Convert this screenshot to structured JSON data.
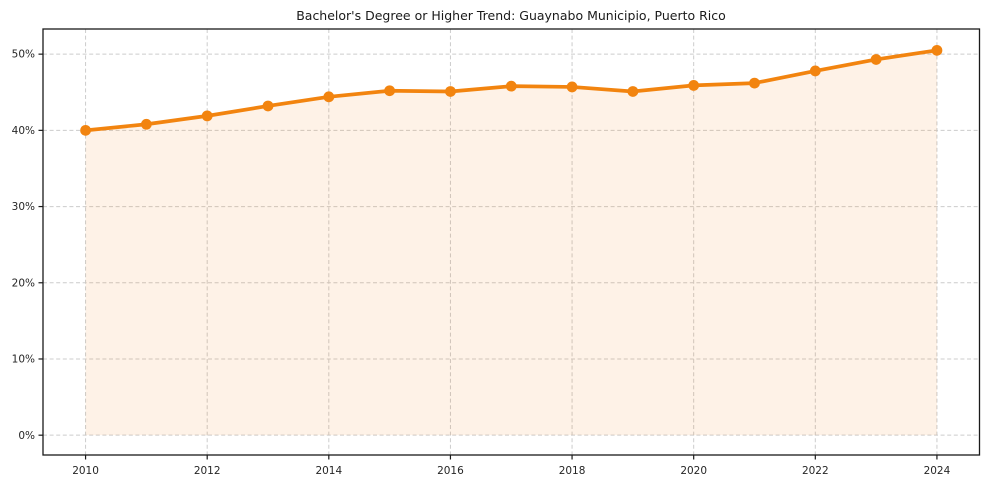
{
  "chart_data": {
    "type": "line",
    "title": "Bachelor's Degree or Higher Trend: Guaynabo Municipio, Puerto Rico",
    "x": [
      2010,
      2011,
      2012,
      2013,
      2014,
      2015,
      2016,
      2017,
      2018,
      2019,
      2020,
      2021,
      2022,
      2023,
      2024
    ],
    "series": [
      {
        "name": "Bachelor's Degree or Higher (%)",
        "values": [
          40.0,
          40.8,
          41.9,
          43.2,
          44.4,
          45.2,
          45.1,
          45.8,
          45.7,
          45.1,
          45.9,
          46.2,
          47.8,
          49.3,
          50.5
        ]
      }
    ],
    "x_ticks": [
      2010,
      2012,
      2014,
      2016,
      2018,
      2020,
      2022,
      2024
    ],
    "x_tick_labels": [
      "2010",
      "2012",
      "2014",
      "2016",
      "2018",
      "2020",
      "2022",
      "2024"
    ],
    "y_ticks": [
      0,
      10,
      20,
      30,
      40,
      50
    ],
    "y_tick_labels": [
      "0%",
      "10%",
      "20%",
      "30%",
      "40%",
      "50%"
    ],
    "xlim": [
      2009.3,
      2024.7
    ],
    "ylim": [
      -2.6,
      53.3
    ],
    "grid": true,
    "grid_style": "dashed",
    "legend": "none",
    "area_baseline": 0,
    "colors": {
      "line": "#f2840f",
      "marker": "#f2840f",
      "area_fill": "rgba(242,132,15,0.10)",
      "gridline": "#cccccc",
      "spine": "#1a1a1a",
      "tick_text": "#262626",
      "background": "#ffffff"
    }
  }
}
